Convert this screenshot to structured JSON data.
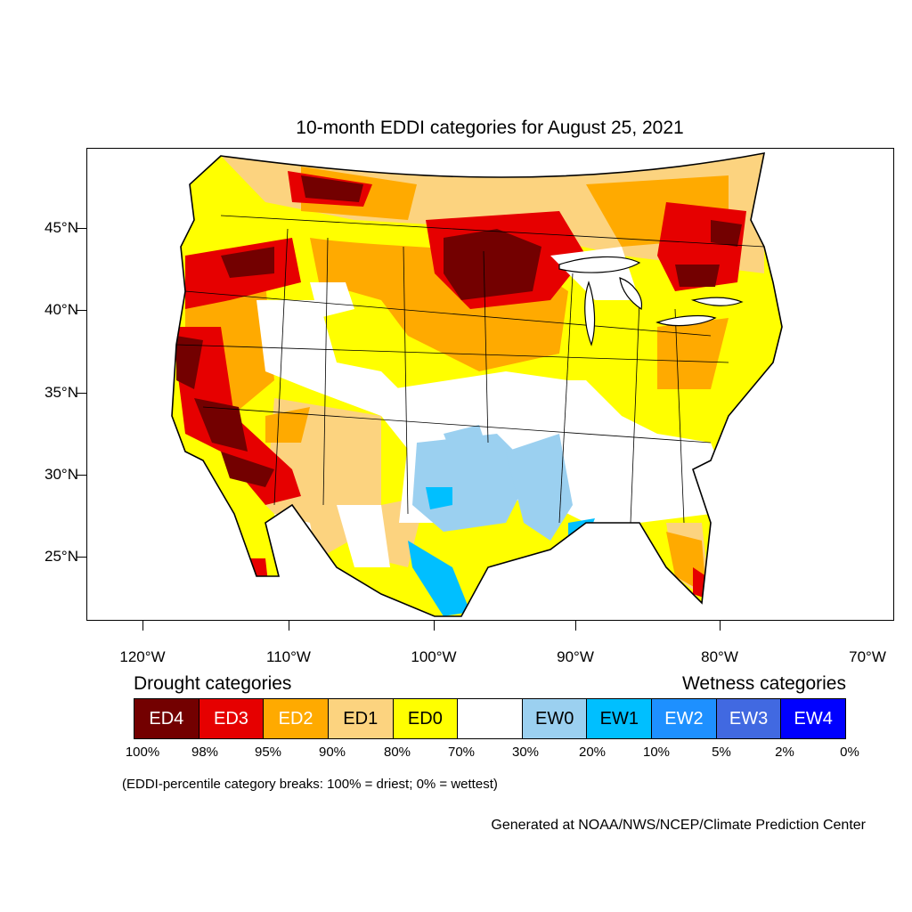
{
  "title": "10-month EDDI categories for August 25, 2021",
  "map": {
    "lat_labels": [
      "45°N",
      "40°N",
      "35°N",
      "30°N",
      "25°N"
    ],
    "lon_labels": [
      "120°W",
      "110°W",
      "100°W",
      "90°W",
      "80°W",
      "70°W"
    ]
  },
  "legend": {
    "drought_heading": "Drought categories",
    "wetness_heading": "Wetness categories",
    "categories": [
      {
        "label": "ED4",
        "color": "#730000",
        "text_color": "#ffffff"
      },
      {
        "label": "ED3",
        "color": "#e60000",
        "text_color": "#ffffff"
      },
      {
        "label": "ED2",
        "color": "#ffaa00",
        "text_color": "#ffffff"
      },
      {
        "label": "ED1",
        "color": "#fcd37f",
        "text_color": "#000000"
      },
      {
        "label": "ED0",
        "color": "#ffff00",
        "text_color": "#000000"
      },
      {
        "label": "",
        "color": "#ffffff",
        "text_color": "#000000"
      },
      {
        "label": "EW0",
        "color": "#9bd0f0",
        "text_color": "#000000"
      },
      {
        "label": "EW1",
        "color": "#00bfff",
        "text_color": "#000000"
      },
      {
        "label": "EW2",
        "color": "#1e90ff",
        "text_color": "#ffffff"
      },
      {
        "label": "EW3",
        "color": "#4169e1",
        "text_color": "#ffffff"
      },
      {
        "label": "EW4",
        "color": "#0000ff",
        "text_color": "#ffffff"
      }
    ],
    "percent_breaks": [
      "100%",
      "98%",
      "95%",
      "90%",
      "80%",
      "70%",
      "30%",
      "20%",
      "10%",
      "5%",
      "2%",
      "0%"
    ]
  },
  "note": "(EDDI-percentile category breaks: 100% = driest; 0% = wettest)",
  "credit": "Generated at NOAA/NWS/NCEP/Climate Prediction Center"
}
